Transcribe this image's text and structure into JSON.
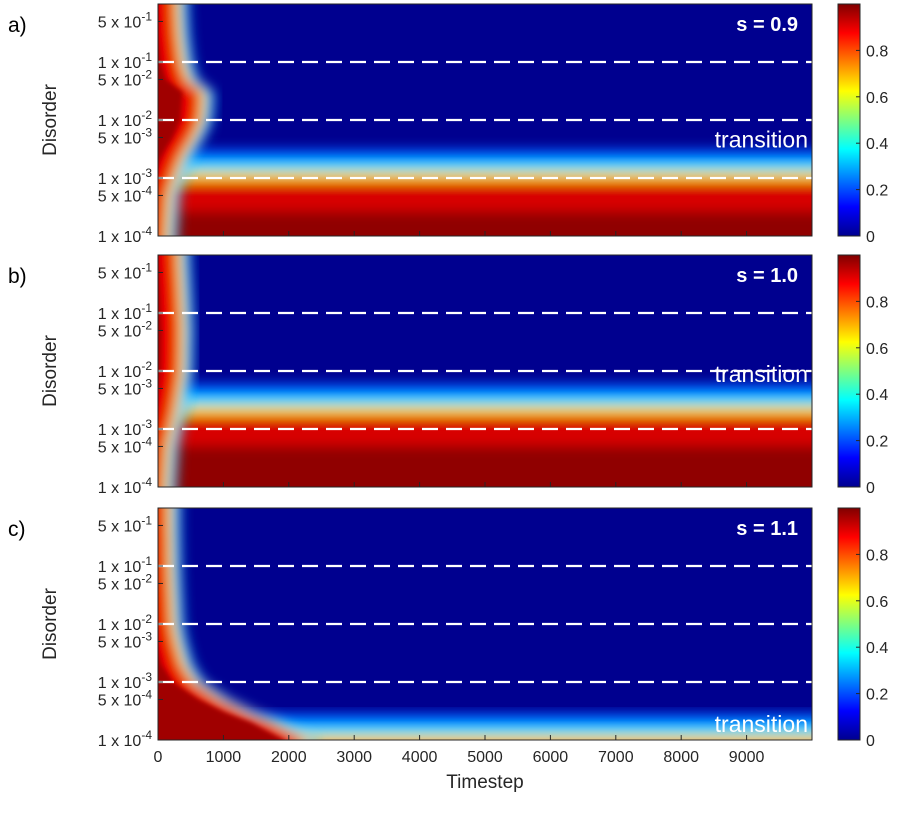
{
  "chart_data": [
    {
      "type": "heatmap",
      "panel_label": "a)",
      "annotation": "s = 0.9",
      "region_label": "transition",
      "ylabel": "Disorder",
      "y_scale": "log",
      "xlim": [
        0,
        10000
      ],
      "ylim": [
        0.0001,
        1
      ],
      "y_ticks": [
        0.0001,
        0.0005,
        0.001,
        0.005,
        0.01,
        0.05,
        0.1,
        0.5
      ],
      "y_tick_coeffs": [
        "1 x 10",
        "5 x 10",
        "1 x 10",
        "5 x 10",
        "1 x 10",
        "5 x 10",
        "1 x 10",
        "5 x 10"
      ],
      "y_tick_exps": [
        "-4",
        "-4",
        "-3",
        "-3",
        "-2",
        "-2",
        "-1",
        "-1"
      ],
      "dashed_lines_y": [
        0.1,
        0.01,
        0.001
      ],
      "transition_disorder": 0.0013,
      "front_timestep": [
        [
          0.0001,
          80
        ],
        [
          0.0005,
          120
        ],
        [
          0.001,
          200
        ],
        [
          0.002,
          300
        ],
        [
          0.003,
          380
        ],
        [
          0.005,
          500
        ],
        [
          0.01,
          620
        ],
        [
          0.03,
          650
        ],
        [
          0.05,
          400
        ],
        [
          0.1,
          320
        ],
        [
          0.3,
          270
        ],
        [
          0.8,
          250
        ]
      ],
      "colorbar": {
        "range": [
          0,
          1
        ],
        "ticks": [
          0,
          0.2,
          0.4,
          0.6,
          0.8
        ],
        "tick_labels": [
          "0",
          "0.2",
          "0.4",
          "0.6",
          "0.8"
        ]
      }
    },
    {
      "type": "heatmap",
      "panel_label": "b)",
      "annotation": "s = 1.0",
      "region_label": "transition",
      "ylabel": "Disorder",
      "y_scale": "log",
      "xlim": [
        0,
        10000
      ],
      "ylim": [
        0.0001,
        1
      ],
      "y_ticks": [
        0.0001,
        0.0005,
        0.001,
        0.005,
        0.01,
        0.05,
        0.1,
        0.5
      ],
      "y_tick_coeffs": [
        "1 x 10",
        "5 x 10",
        "1 x 10",
        "5 x 10",
        "1 x 10",
        "5 x 10",
        "1 x 10",
        "5 x 10"
      ],
      "y_tick_exps": [
        "-4",
        "-4",
        "-3",
        "-3",
        "-2",
        "-2",
        "-1",
        "-1"
      ],
      "dashed_lines_y": [
        0.1,
        0.01,
        0.001
      ],
      "transition_disorder": 0.0025,
      "front_timestep": [
        [
          0.0001,
          60
        ],
        [
          0.0005,
          100
        ],
        [
          0.001,
          160
        ],
        [
          0.002,
          220
        ],
        [
          0.005,
          280
        ],
        [
          0.01,
          320
        ],
        [
          0.05,
          330
        ],
        [
          0.1,
          320
        ],
        [
          0.3,
          300
        ],
        [
          0.8,
          280
        ]
      ],
      "colorbar": {
        "range": [
          0,
          1
        ],
        "ticks": [
          0,
          0.2,
          0.4,
          0.6,
          0.8
        ],
        "tick_labels": [
          "0",
          "0.2",
          "0.4",
          "0.6",
          "0.8"
        ]
      }
    },
    {
      "type": "heatmap",
      "panel_label": "c)",
      "annotation": "s = 1.1",
      "region_label": "transition",
      "ylabel": "Disorder",
      "xlabel": "Timestep",
      "y_scale": "log",
      "xlim": [
        0,
        10000
      ],
      "ylim": [
        0.0001,
        1
      ],
      "x_ticks": [
        0,
        1000,
        2000,
        3000,
        4000,
        5000,
        6000,
        7000,
        8000,
        9000
      ],
      "x_tick_labels": [
        "0",
        "1000",
        "2000",
        "3000",
        "4000",
        "5000",
        "6000",
        "7000",
        "8000",
        "9000"
      ],
      "y_ticks": [
        0.0001,
        0.0005,
        0.001,
        0.005,
        0.01,
        0.05,
        0.1,
        0.5
      ],
      "y_tick_coeffs": [
        "1 x 10",
        "5 x 10",
        "1 x 10",
        "5 x 10",
        "1 x 10",
        "5 x 10",
        "1 x 10",
        "5 x 10"
      ],
      "y_tick_exps": [
        "-4",
        "-4",
        "-3",
        "-3",
        "-2",
        "-2",
        "-1",
        "-1"
      ],
      "dashed_lines_y": [
        0.1,
        0.01,
        0.001
      ],
      "transition_disorder": 0.00012,
      "front_timestep": [
        [
          0.0001,
          2200
        ],
        [
          0.00015,
          1900
        ],
        [
          0.0002,
          1700
        ],
        [
          0.0003,
          1300
        ],
        [
          0.0005,
          900
        ],
        [
          0.001,
          500
        ],
        [
          0.002,
          330
        ],
        [
          0.005,
          230
        ],
        [
          0.01,
          180
        ],
        [
          0.05,
          150
        ],
        [
          0.1,
          140
        ],
        [
          0.5,
          130
        ]
      ],
      "colorbar": {
        "range": [
          0,
          1
        ],
        "ticks": [
          0,
          0.2,
          0.4,
          0.6,
          0.8
        ],
        "tick_labels": [
          "0",
          "0.2",
          "0.4",
          "0.6",
          "0.8"
        ]
      }
    }
  ]
}
